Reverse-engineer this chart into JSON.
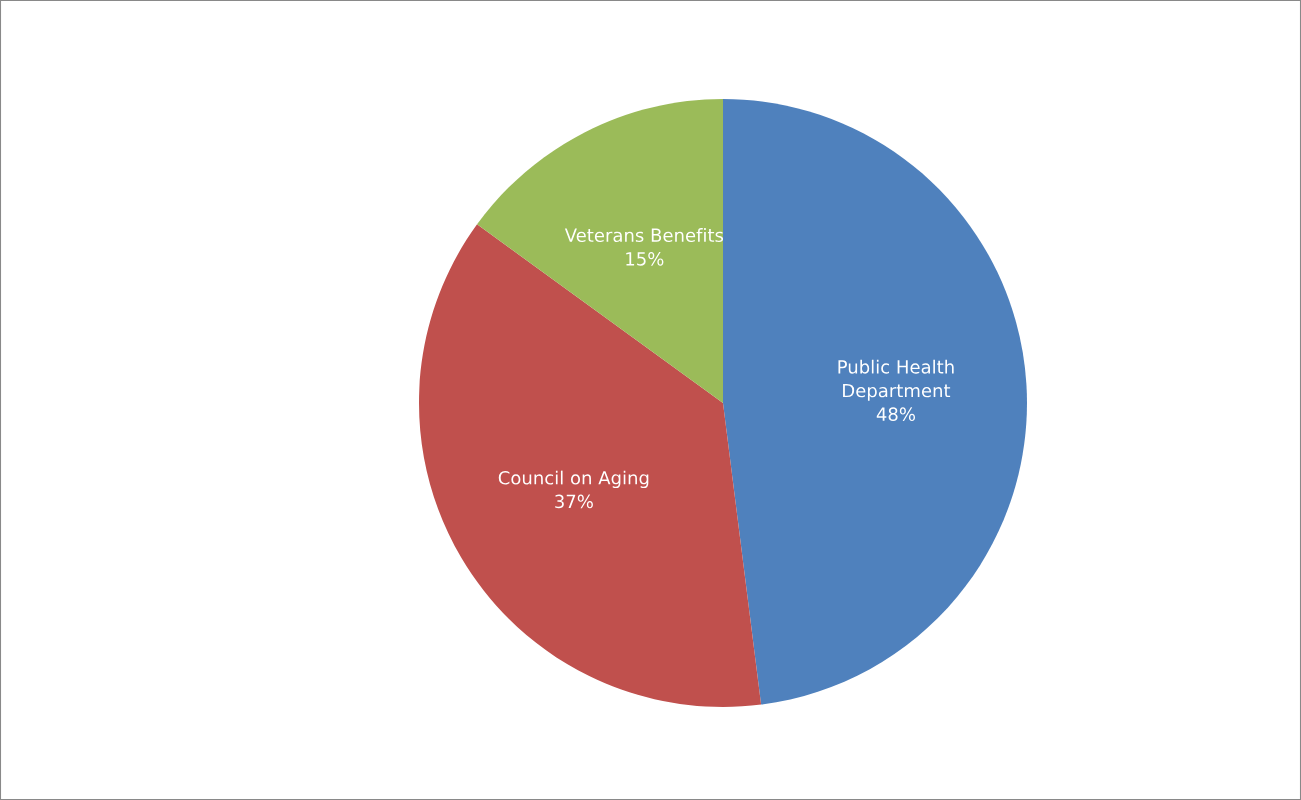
{
  "chart_data": {
    "type": "pie",
    "categories": [
      "Public Health Department",
      "Council on Aging",
      "Veterans Benefits"
    ],
    "values": [
      48,
      37,
      15
    ],
    "colors": [
      "#4f81bd",
      "#c0504d",
      "#9bbb59"
    ],
    "value_labels": [
      "48%",
      "37%",
      "15%"
    ]
  }
}
